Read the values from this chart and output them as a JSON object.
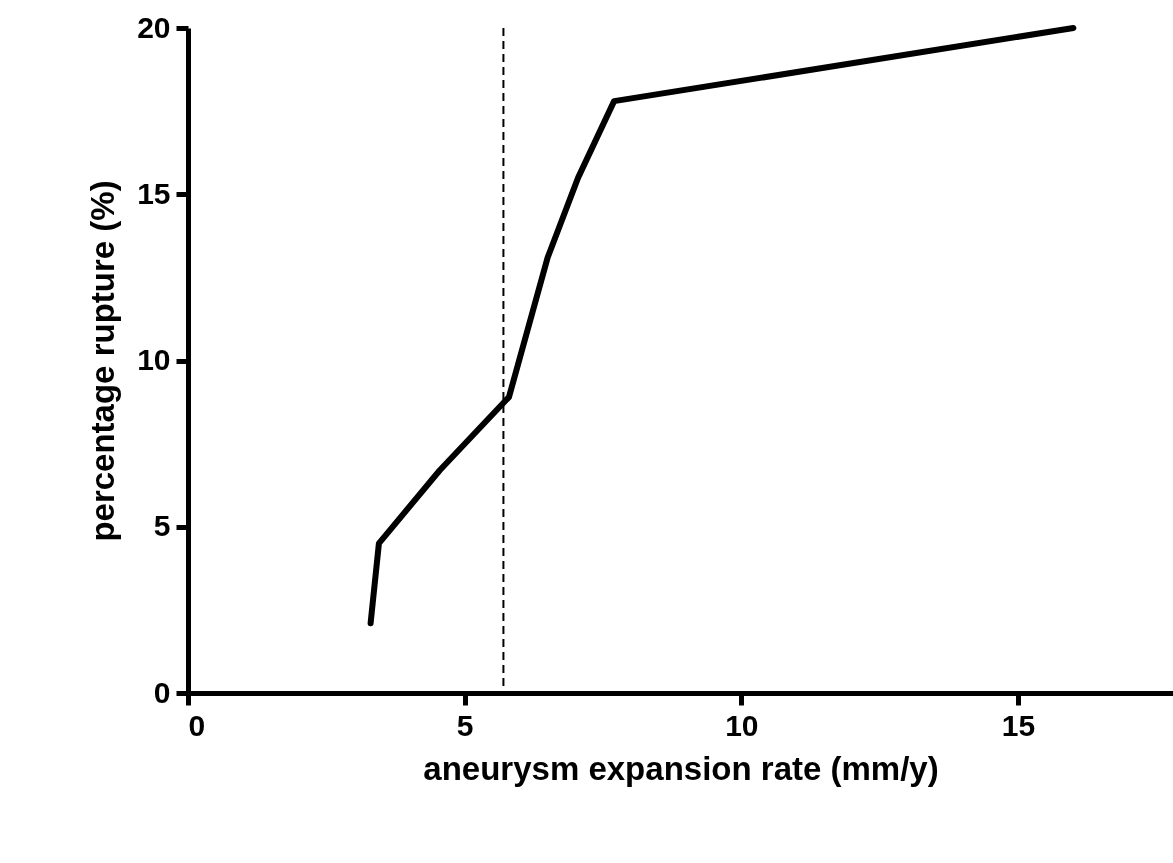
{
  "chart_data": {
    "type": "line",
    "xlabel": "aneurysm expansion rate (mm/y)",
    "ylabel": "percentage rupture (%)",
    "x": [
      3.3,
      3.45,
      4.55,
      5.8,
      6.5,
      7.05,
      7.7,
      16
    ],
    "series": [
      {
        "color": "#000000",
        "values": [
          2.1,
          4.5,
          6.7,
          8.9,
          13.1,
          15.5,
          17.8,
          20
        ]
      }
    ],
    "xlim": [
      0,
      17.8
    ],
    "ylim": [
      0,
      20
    ],
    "xticks": [
      0,
      5,
      10,
      15
    ],
    "yticks": [
      0,
      5,
      10,
      15,
      20
    ],
    "ref_lines": [
      {
        "axis": "x",
        "value": 5.7,
        "line_style": "dashed",
        "color": "#000000"
      }
    ],
    "grid": false,
    "marker": "none",
    "line_style": "solid"
  }
}
